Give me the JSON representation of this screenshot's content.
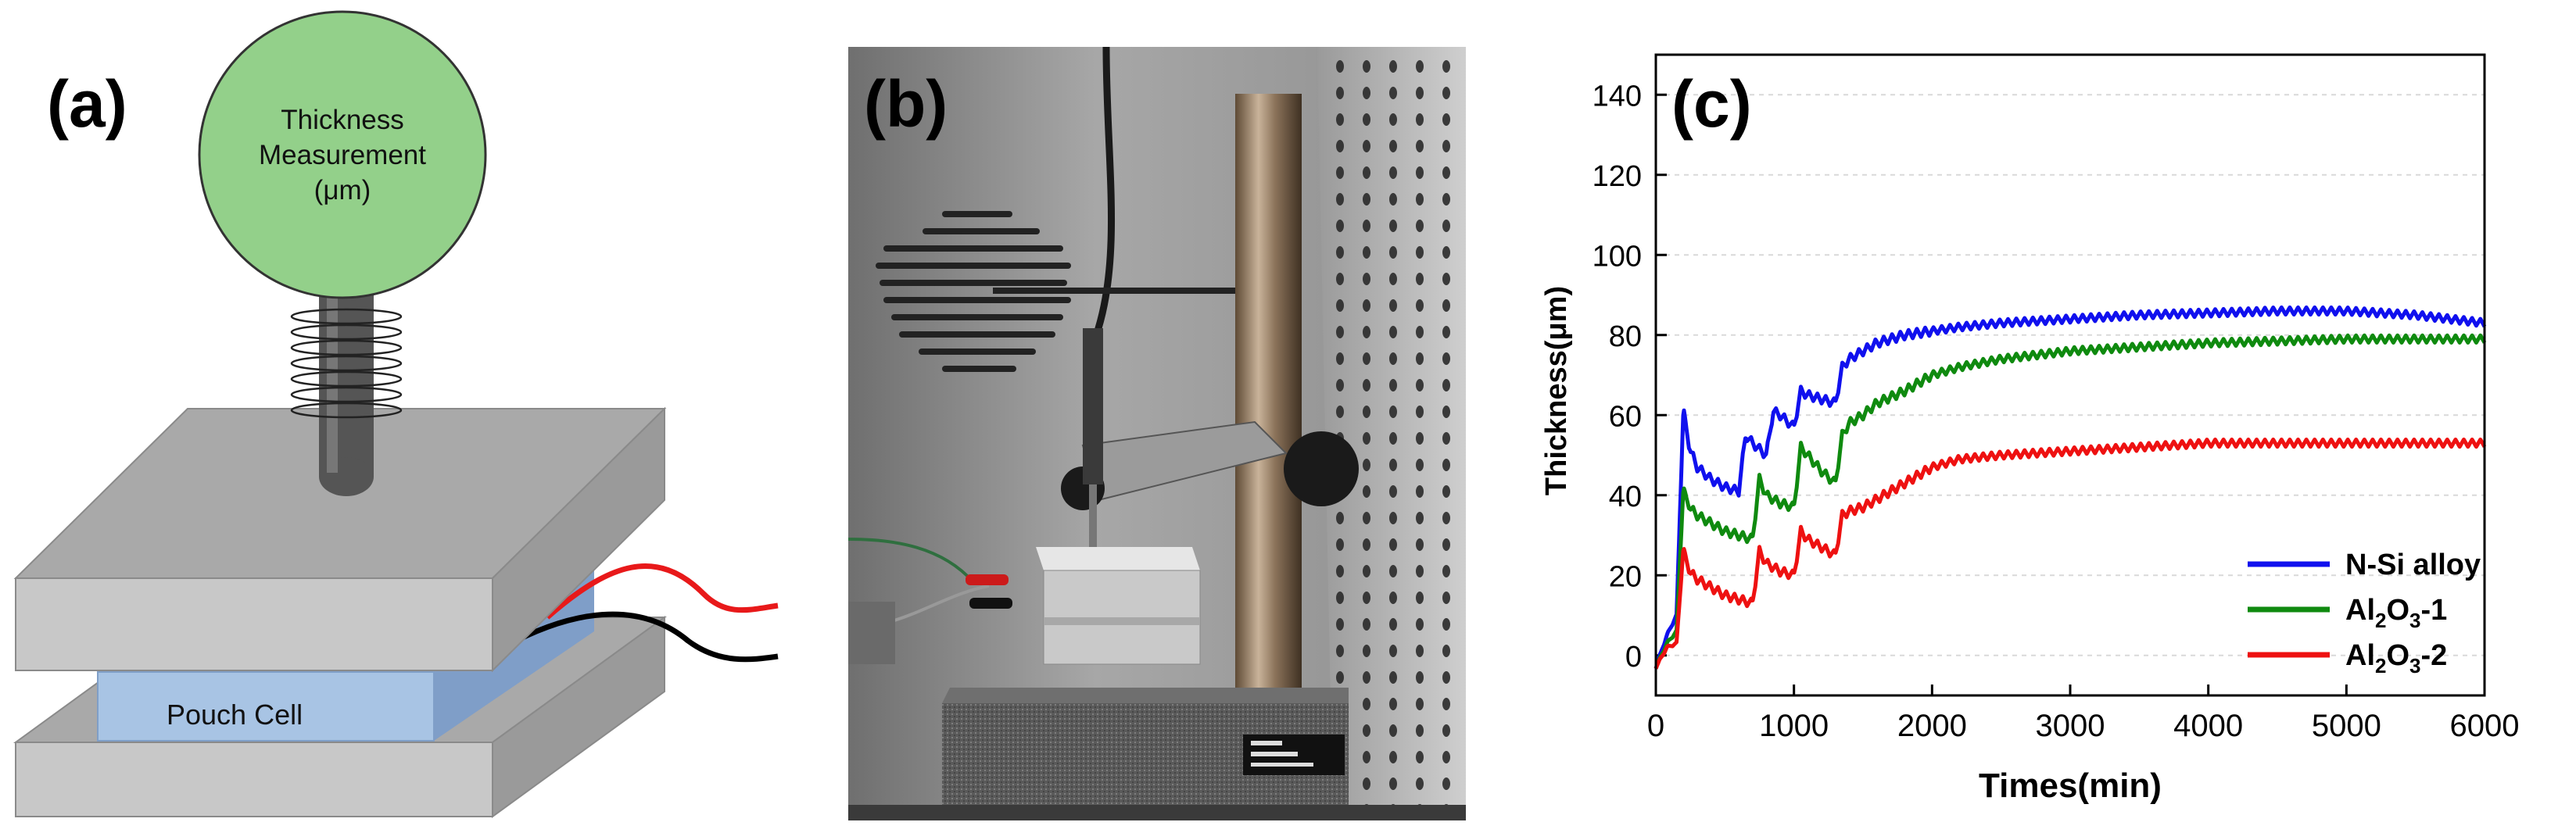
{
  "panel_a": {
    "label": "(a)",
    "gauge_line1": "Thickness",
    "gauge_line2": "Measurement",
    "gauge_line3": "(μm)",
    "cell_label": "Pouch Cell",
    "colors": {
      "gauge": "#93d08a",
      "plate": "#c8c8c8",
      "cell": "#a8c4e4",
      "wire_pos": "#e8191a",
      "wire_neg": "#000000"
    }
  },
  "panel_b": {
    "label": "(b)",
    "photo_description_icon": "thickness-gauge-stand-photo"
  },
  "panel_c": {
    "label": "(c)"
  },
  "chart_data": {
    "type": "line",
    "title": "",
    "xlabel": "Times(min)",
    "ylabel": "Thickness(μm)",
    "xlim": [
      0,
      6000
    ],
    "ylim": [
      -10,
      150
    ],
    "xticks": [
      0,
      1000,
      2000,
      3000,
      4000,
      5000,
      6000
    ],
    "yticks": [
      0,
      20,
      40,
      60,
      80,
      100,
      120,
      140
    ],
    "grid": true,
    "legend_position": "bottom-right",
    "series": [
      {
        "name": "N-Si alloy",
        "color": "#1010ee",
        "x": [
          0,
          80,
          150,
          200,
          240,
          300,
          400,
          500,
          600,
          650,
          700,
          800,
          850,
          900,
          1000,
          1050,
          1100,
          1200,
          1300,
          1350,
          1400,
          1500,
          1600,
          1800,
          2000,
          2200,
          2500,
          3000,
          3500,
          4000,
          4500,
          5000,
          5500,
          6000
        ],
        "y": [
          -3,
          5,
          10,
          62,
          52,
          47,
          44,
          42,
          41,
          55,
          53,
          50,
          61,
          60,
          57,
          66,
          65,
          64,
          63,
          72,
          74,
          76,
          78,
          80,
          81,
          82,
          83,
          84,
          85,
          85.5,
          86,
          86,
          85,
          83
        ]
      },
      {
        "name": "Al2O3-1",
        "color": "#0f8a0f",
        "x": [
          0,
          80,
          150,
          200,
          240,
          300,
          400,
          500,
          600,
          700,
          750,
          800,
          900,
          1000,
          1050,
          1100,
          1200,
          1300,
          1350,
          1400,
          1500,
          1600,
          1800,
          2000,
          2200,
          2500,
          3000,
          3500,
          4000,
          4500,
          5000,
          5500,
          6000
        ],
        "y": [
          -3,
          3,
          6,
          42,
          37,
          35,
          33,
          31,
          30,
          29,
          44,
          40,
          38,
          37,
          52,
          50,
          46,
          43,
          55,
          58,
          60,
          63,
          66,
          70,
          72,
          74,
          76,
          77,
          78,
          78.5,
          79,
          79,
          79
        ]
      },
      {
        "name": "Al2O3-2",
        "color": "#ee1111",
        "x": [
          0,
          80,
          150,
          200,
          240,
          300,
          400,
          500,
          600,
          700,
          750,
          800,
          900,
          1000,
          1050,
          1100,
          1200,
          1300,
          1350,
          1400,
          1500,
          1600,
          1800,
          2000,
          2200,
          2500,
          3000,
          3500,
          4000,
          4500,
          5000,
          5500,
          6000
        ],
        "y": [
          -3,
          2,
          3,
          27,
          21,
          19,
          17,
          15,
          14,
          13,
          26,
          23,
          21,
          20,
          31,
          29,
          27,
          25,
          35,
          36,
          37,
          39,
          43,
          47,
          49,
          50,
          51,
          52,
          53,
          53,
          53,
          53,
          53
        ]
      }
    ],
    "legend": [
      {
        "base": "N-Si alloy",
        "sub1": "",
        "mid": "",
        "sub2": "",
        "tail": ""
      },
      {
        "base": "Al",
        "sub1": "2",
        "mid": "O",
        "sub2": "3",
        "tail": "-1"
      },
      {
        "base": "Al",
        "sub1": "2",
        "mid": "O",
        "sub2": "3",
        "tail": "-2"
      }
    ]
  }
}
